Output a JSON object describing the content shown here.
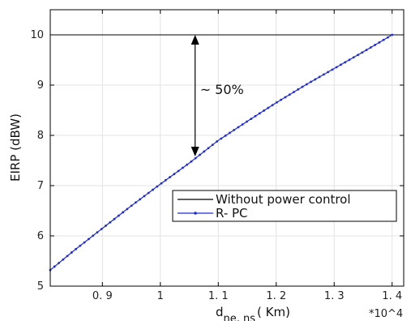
{
  "chart_data": {
    "type": "line",
    "title": "",
    "xlabel": "d",
    "xlabel_sub": "ne, ns",
    "xlabel_unit": "( Km)",
    "ylabel": "EIRP (dBW)",
    "x_multiplier": "*10^4",
    "xlim": [
      0.81,
      1.42
    ],
    "ylim": [
      5,
      10.5
    ],
    "x_ticks": [
      0.9,
      1.0,
      1.1,
      1.2,
      1.3,
      1.4
    ],
    "x_tick_labels": [
      "0. 9",
      "1",
      "1. 1",
      "1. 2",
      "1. 3",
      "1. 4"
    ],
    "y_ticks": [
      5,
      6,
      7,
      8,
      9,
      10
    ],
    "y_tick_labels": [
      "5",
      "6",
      "7",
      "8",
      "9",
      "10"
    ],
    "grid": true,
    "legend_position": "lower-right",
    "series": [
      {
        "name": "Without power control",
        "color": "#000000",
        "marker": "none",
        "x": [
          0.81,
          1.42
        ],
        "y": [
          10,
          10
        ]
      },
      {
        "name": "R- PC",
        "color": "#1f2bd6",
        "marker": "dot",
        "x": [
          0.81,
          0.85,
          0.9,
          0.95,
          1.0,
          1.05,
          1.1,
          1.15,
          1.2,
          1.25,
          1.3,
          1.35,
          1.4
        ],
        "y": [
          5.32,
          5.7,
          6.15,
          6.6,
          7.03,
          7.45,
          7.9,
          8.28,
          8.65,
          9.0,
          9.33,
          9.66,
          10.0
        ]
      }
    ],
    "annotation": {
      "text": "~ 50%",
      "arrow_x": 1.06,
      "arrow_y_from": 7.58,
      "arrow_y_to": 10.0
    }
  }
}
